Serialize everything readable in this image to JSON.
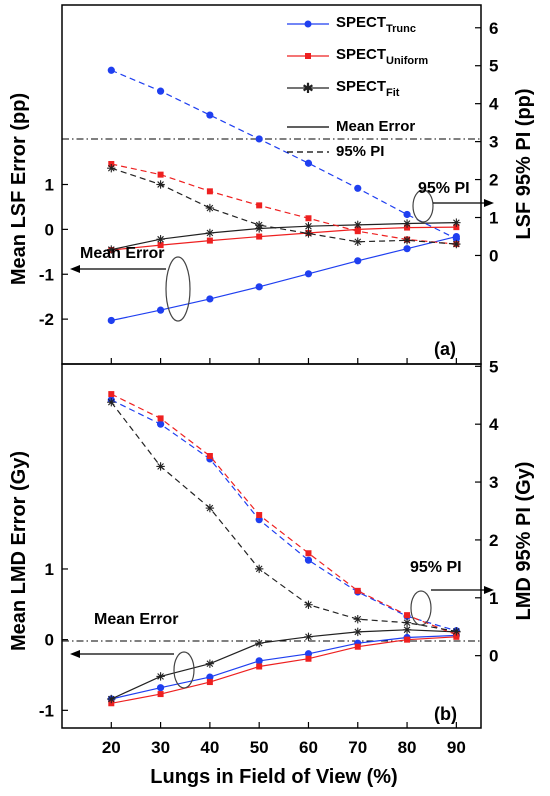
{
  "chart_data": [
    {
      "type": "line",
      "panel_label": "(a)",
      "x": [
        20,
        30,
        40,
        50,
        60,
        70,
        80,
        90
      ],
      "x_ticks": [
        "20",
        "30",
        "40",
        "50",
        "60",
        "70",
        "80",
        "90"
      ],
      "xlim": [
        10,
        95
      ],
      "ylabel": "Mean LSF Error (pp)",
      "ylim": [
        -3,
        5
      ],
      "y_ticks": [
        1,
        0,
        -1,
        -2
      ],
      "y_tick_labels": [
        "1",
        "0",
        "-1",
        "-2"
      ],
      "ylabel_right": "LSF 95% PI (pp)",
      "ylim_right": [
        -2.86,
        6.6
      ],
      "y_ticks_right": [
        0,
        1,
        2,
        3,
        4,
        5,
        6
      ],
      "y_tick_labels_right": [
        "0",
        "1",
        "2",
        "3",
        "4",
        "5",
        "6"
      ],
      "legend": {
        "placement": "top-right",
        "entries": [
          {
            "base": "SPECT",
            "sub": "Trunc",
            "color": "#1f3ff0",
            "marker": "circle"
          },
          {
            "base": "SPECT",
            "sub": "Uniform",
            "color": "#ee2020",
            "marker": "square"
          },
          {
            "base": "SPECT",
            "sub": "Fit",
            "color": "#222222",
            "marker": "star"
          },
          {
            "base": "Mean Error",
            "sub": "",
            "color": "#000000",
            "marker": "solid-line"
          },
          {
            "base": "95% PI",
            "sub": "",
            "color": "#000000",
            "marker": "dashed-line"
          }
        ]
      },
      "series": [
        {
          "name": "SPECT Trunc",
          "kind": "mean",
          "axis": "left",
          "color": "#1f3ff0",
          "marker": "circle",
          "values": [
            -2.03,
            -1.8,
            -1.55,
            -1.28,
            -0.99,
            -0.7,
            -0.43,
            -0.16
          ]
        },
        {
          "name": "SPECT Uniform",
          "kind": "mean",
          "axis": "left",
          "color": "#ee2020",
          "marker": "square",
          "values": [
            -0.46,
            -0.35,
            -0.25,
            -0.16,
            -0.08,
            0.0,
            0.04,
            0.05
          ]
        },
        {
          "name": "SPECT Fit",
          "kind": "mean",
          "axis": "left",
          "color": "#222222",
          "marker": "star",
          "values": [
            -0.45,
            -0.22,
            -0.08,
            0.02,
            0.07,
            0.1,
            0.13,
            0.15
          ]
        },
        {
          "name": "SPECT Trunc",
          "kind": "pi",
          "axis": "right",
          "color": "#1f3ff0",
          "marker": "circle",
          "values": [
            4.88,
            4.33,
            3.7,
            3.07,
            2.43,
            1.77,
            1.08,
            0.44
          ]
        },
        {
          "name": "SPECT Uniform",
          "kind": "pi",
          "axis": "right",
          "color": "#ee2020",
          "marker": "square",
          "values": [
            2.41,
            2.13,
            1.69,
            1.32,
            0.98,
            0.64,
            0.42,
            0.3
          ]
        },
        {
          "name": "SPECT Fit",
          "kind": "pi",
          "axis": "right",
          "color": "#222222",
          "marker": "star",
          "values": [
            2.3,
            1.87,
            1.25,
            0.8,
            0.58,
            0.36,
            0.4,
            0.3
          ]
        }
      ],
      "annotations": [
        {
          "text": "Mean Error",
          "arrow": "left"
        },
        {
          "text": "95% PI",
          "arrow": "right"
        }
      ]
    },
    {
      "type": "line",
      "panel_label": "(b)",
      "x": [
        20,
        30,
        40,
        50,
        60,
        70,
        80,
        90
      ],
      "x_ticks": [
        "20",
        "30",
        "40",
        "50",
        "60",
        "70",
        "80",
        "90"
      ],
      "xlim": [
        10,
        95
      ],
      "xlabel": "Lungs in Field of View (%)",
      "ylabel": "Mean LMD Error (Gy)",
      "ylim": [
        -1.25,
        3.9
      ],
      "y_ticks": [
        1,
        0,
        -1
      ],
      "y_tick_labels": [
        "1",
        "0",
        "-1"
      ],
      "ylabel_right": "LMD 95% PI (Gy)",
      "ylim_right": [
        -1.25,
        5.04
      ],
      "y_ticks_right": [
        0,
        1,
        2,
        3,
        4,
        5
      ],
      "y_tick_labels_right": [
        "0",
        "1",
        "2",
        "3",
        "4",
        "5"
      ],
      "series": [
        {
          "name": "SPECT Trunc",
          "kind": "mean",
          "axis": "left",
          "color": "#1f3ff0",
          "marker": "circle",
          "values": [
            -0.84,
            -0.68,
            -0.53,
            -0.3,
            -0.2,
            -0.05,
            0.03,
            0.06
          ]
        },
        {
          "name": "SPECT Uniform",
          "kind": "mean",
          "axis": "left",
          "color": "#ee2020",
          "marker": "square",
          "values": [
            -0.9,
            -0.77,
            -0.6,
            -0.38,
            -0.27,
            -0.1,
            0.0,
            0.04
          ]
        },
        {
          "name": "SPECT Fit",
          "kind": "mean",
          "axis": "left",
          "color": "#222222",
          "marker": "star",
          "values": [
            -0.84,
            -0.52,
            -0.34,
            -0.05,
            0.04,
            0.11,
            0.14,
            0.11
          ]
        },
        {
          "name": "SPECT Trunc",
          "kind": "pi",
          "axis": "right",
          "color": "#1f3ff0",
          "marker": "circle",
          "values": [
            4.42,
            4.0,
            3.4,
            2.35,
            1.65,
            1.1,
            0.68,
            0.43
          ]
        },
        {
          "name": "SPECT Uniform",
          "kind": "pi",
          "axis": "right",
          "color": "#ee2020",
          "marker": "square",
          "values": [
            4.52,
            4.1,
            3.45,
            2.43,
            1.77,
            1.12,
            0.7,
            0.36
          ]
        },
        {
          "name": "SPECT Fit",
          "kind": "pi",
          "axis": "right",
          "color": "#222222",
          "marker": "star",
          "values": [
            4.38,
            3.27,
            2.55,
            1.5,
            0.88,
            0.63,
            0.57,
            0.42
          ]
        }
      ],
      "annotations": [
        {
          "text": "Mean Error",
          "arrow": "left"
        },
        {
          "text": "95% PI",
          "arrow": "right"
        }
      ]
    }
  ]
}
